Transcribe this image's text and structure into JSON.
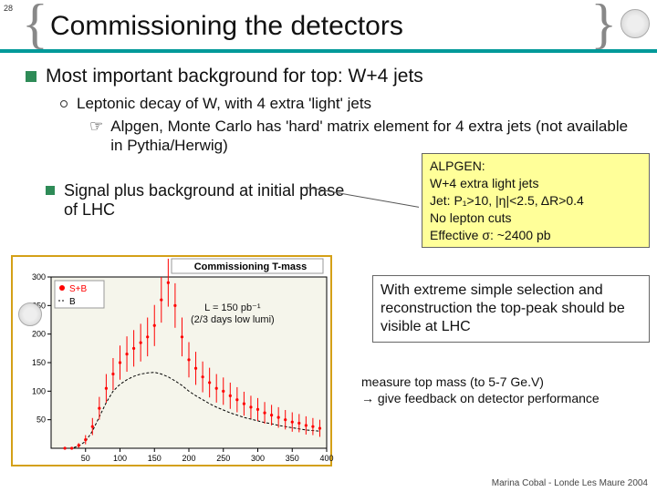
{
  "pageNumber": "28",
  "title": "Commissioning the detectors",
  "mainBullet": "Most important background for top: W+4 jets",
  "subBullet": "Leptonic decay of W,  with 4 extra 'light' jets",
  "subSub": "Alpgen, Monte Carlo has 'hard' matrix element for 4 extra jets (not available in Pythia/Herwig)",
  "signalBullet": "Signal plus background at initial phase of LHC",
  "alpgenBox": {
    "l1": "ALPGEN:",
    "l2": "W+4 extra light jets",
    "l3": "Jet: P₁>10, |η|<2.5, ΔR>0.4",
    "l4": "No lepton cuts",
    "l5": "Effective σ: ~2400 pb"
  },
  "conclusion": "With extreme simple selection and reconstruction the top-peak should be visible at LHC",
  "measure": {
    "l1": "measure top mass (to 5-7 Ge.V)",
    "l2": "→ give feedback on detector performance"
  },
  "footer": "Marina Cobal -   Londe Les Maure 2004",
  "lumi": {
    "l1": "L = 150 pb⁻¹",
    "l2": "(2/3 days low lumi)"
  },
  "chart": {
    "title": "Commissioning T-mass",
    "legend": {
      "item1": "S+B",
      "item2": "B"
    },
    "xRange": [
      0,
      400
    ],
    "xTicks": [
      50,
      100,
      150,
      200,
      250,
      300,
      350,
      400
    ],
    "yRange": [
      0,
      300
    ],
    "yTicks": [
      50,
      100,
      150,
      200,
      250,
      300
    ],
    "bg": "#f5f5eb",
    "sb": {
      "color": "#ff0000",
      "x": [
        20,
        30,
        40,
        50,
        60,
        70,
        80,
        90,
        100,
        110,
        120,
        130,
        140,
        150,
        160,
        170,
        180,
        190,
        200,
        210,
        220,
        230,
        240,
        250,
        260,
        270,
        280,
        290,
        300,
        310,
        320,
        330,
        340,
        350,
        360,
        370,
        380,
        390
      ],
      "y": [
        0,
        0,
        5,
        15,
        38,
        70,
        105,
        130,
        150,
        165,
        175,
        185,
        195,
        215,
        260,
        290,
        250,
        195,
        155,
        140,
        125,
        115,
        105,
        100,
        92,
        85,
        78,
        72,
        68,
        62,
        58,
        54,
        50,
        46,
        44,
        40,
        38,
        35
      ],
      "err": [
        0,
        0,
        4,
        8,
        15,
        20,
        25,
        28,
        30,
        31,
        32,
        33,
        34,
        36,
        40,
        42,
        39,
        34,
        31,
        29,
        27,
        26,
        25,
        24,
        23,
        22,
        21,
        20,
        20,
        19,
        18,
        18,
        17,
        17,
        16,
        16,
        15,
        15
      ]
    },
    "b": {
      "color": "#000000",
      "x": [
        20,
        30,
        40,
        50,
        60,
        70,
        80,
        90,
        100,
        110,
        120,
        130,
        140,
        150,
        160,
        170,
        180,
        190,
        200,
        210,
        220,
        230,
        240,
        250,
        260,
        270,
        280,
        290,
        300,
        310,
        320,
        330,
        340,
        350,
        360,
        370,
        380,
        390
      ],
      "y": [
        0,
        0,
        4,
        12,
        30,
        55,
        80,
        100,
        112,
        120,
        126,
        130,
        132,
        133,
        130,
        125,
        118,
        110,
        100,
        92,
        85,
        78,
        72,
        67,
        62,
        58,
        54,
        51,
        48,
        45,
        43,
        40,
        38,
        36,
        34,
        32,
        31,
        30
      ]
    }
  }
}
